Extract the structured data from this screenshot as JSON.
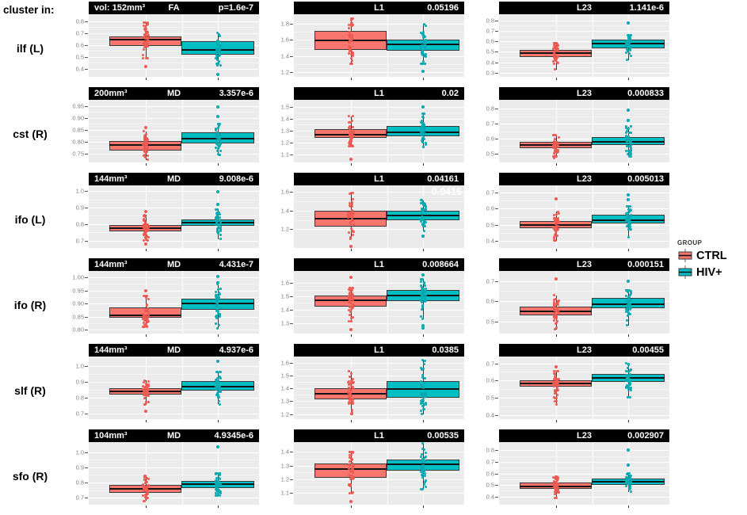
{
  "page": {
    "left_header": "cluster in:"
  },
  "legend": {
    "title": "GROUP",
    "entries": [
      {
        "label": "CTRL",
        "color": "#F8766D"
      },
      {
        "label": "HIV+",
        "color": "#00BFC4"
      }
    ]
  },
  "colors": {
    "ctrl": "#F8766D",
    "hiv": "#00BFC4",
    "ctrl_dot": "#ee5a51",
    "hiv_dot": "#00aab0",
    "panel_bg": "#ebebeb",
    "grid": "#ffffff",
    "header_bg": "#000000",
    "header_fg": "#ffffff",
    "tick": "#7f7f7f"
  },
  "chart_data": {
    "type": "boxplot-grid",
    "groups": [
      "CTRL",
      "HIV+"
    ],
    "rows": [
      {
        "tract": "ilf  (L)",
        "panels": [
          {
            "hl": "vol: 152mm³",
            "metric": "FA",
            "p": "p=1.6e-7",
            "ylim": [
              0.33,
              0.86
            ],
            "tick_labels": [
              "0.8",
              "0.7",
              "0.6",
              "0.5",
              "0.4"
            ],
            "tick_values": [
              0.8,
              0.7,
              0.6,
              0.5,
              0.4
            ],
            "ctrl": {
              "q1": 0.59,
              "median": 0.645,
              "q3": 0.675,
              "lo": 0.49,
              "hi": 0.79,
              "outliers": [
                0.415
              ]
            },
            "hiv": {
              "q1": 0.52,
              "median": 0.555,
              "q3": 0.63,
              "lo": 0.43,
              "hi": 0.7,
              "outliers": [
                0.35
              ]
            }
          },
          {
            "hl": "",
            "metric": "L1",
            "p": "0.05196",
            "ylim": [
              1.14,
              1.92
            ],
            "tick_labels": [
              "1.8",
              "1.6",
              "1.4",
              "1.2"
            ],
            "tick_values": [
              1.8,
              1.6,
              1.4,
              1.2
            ],
            "ctrl": {
              "q1": 1.48,
              "median": 1.59,
              "q3": 1.71,
              "lo": 1.3,
              "hi": 1.87,
              "outliers": []
            },
            "hiv": {
              "q1": 1.47,
              "median": 1.54,
              "q3": 1.6,
              "lo": 1.3,
              "hi": 1.8,
              "outliers": [
                1.21
              ]
            }
          },
          {
            "hl": "",
            "metric": "L23",
            "p": "1.141e-6",
            "ylim": [
              0.26,
              0.86
            ],
            "tick_labels": [
              "0.8",
              "0.7",
              "0.6",
              "0.5",
              "0.4",
              "0.3"
            ],
            "tick_values": [
              0.8,
              0.7,
              0.6,
              0.5,
              0.4,
              0.3
            ],
            "ctrl": {
              "q1": 0.45,
              "median": 0.487,
              "q3": 0.52,
              "lo": 0.33,
              "hi": 0.58,
              "outliers": []
            },
            "hiv": {
              "q1": 0.53,
              "median": 0.578,
              "q3": 0.62,
              "lo": 0.42,
              "hi": 0.66,
              "outliers": [
                0.78
              ]
            }
          }
        ]
      },
      {
        "tract": "cst  (R)",
        "panels": [
          {
            "hl": "200mm³",
            "metric": "MD",
            "p": "3.357e-6",
            "ylim": [
              0.715,
              0.975
            ],
            "tick_labels": [
              "0.95",
              "0.90",
              "0.85",
              "0.80",
              "0.75"
            ],
            "tick_values": [
              0.95,
              0.9,
              0.85,
              0.8,
              0.75
            ],
            "ctrl": {
              "q1": 0.765,
              "median": 0.787,
              "q3": 0.805,
              "lo": 0.725,
              "hi": 0.845,
              "outliers": [
                0.86
              ]
            },
            "hiv": {
              "q1": 0.795,
              "median": 0.815,
              "q3": 0.84,
              "lo": 0.745,
              "hi": 0.875,
              "outliers": [
                0.905,
                0.945
              ]
            }
          },
          {
            "hl": "",
            "metric": "L1",
            "p": "0.02",
            "ylim": [
              1.03,
              1.56
            ],
            "tick_labels": [
              "1.5",
              "1.4",
              "1.3",
              "1.2",
              "1.1"
            ],
            "tick_values": [
              1.5,
              1.4,
              1.3,
              1.2,
              1.1
            ],
            "ctrl": {
              "q1": 1.235,
              "median": 1.265,
              "q3": 1.31,
              "lo": 1.17,
              "hi": 1.42,
              "outliers": [
                1.06
              ]
            },
            "hiv": {
              "q1": 1.25,
              "median": 1.285,
              "q3": 1.34,
              "lo": 1.16,
              "hi": 1.44,
              "outliers": [
                1.5
              ]
            }
          },
          {
            "hl": "",
            "metric": "L23",
            "p": "0.000833",
            "ylim": [
              0.44,
              0.86
            ],
            "tick_labels": [
              "0.8",
              "0.7",
              "0.6",
              "0.5"
            ],
            "tick_values": [
              0.8,
              0.7,
              0.6,
              0.5
            ],
            "ctrl": {
              "q1": 0.535,
              "median": 0.556,
              "q3": 0.578,
              "lo": 0.47,
              "hi": 0.625,
              "outliers": []
            },
            "hiv": {
              "q1": 0.555,
              "median": 0.578,
              "q3": 0.612,
              "lo": 0.48,
              "hi": 0.68,
              "outliers": [
                0.72,
                0.79
              ]
            }
          }
        ]
      },
      {
        "tract": "ifo (L)",
        "panels": [
          {
            "hl": "144mm³",
            "metric": "MD",
            "p": "9.008e-6",
            "ylim": [
              0.655,
              1.035
            ],
            "tick_labels": [
              "1.0",
              "0.9",
              "0.8",
              "0.7"
            ],
            "tick_values": [
              1.0,
              0.9,
              0.8,
              0.7
            ],
            "ctrl": {
              "q1": 0.755,
              "median": 0.776,
              "q3": 0.795,
              "lo": 0.7,
              "hi": 0.855,
              "outliers": [
                0.875,
                0.68
              ]
            },
            "hiv": {
              "q1": 0.79,
              "median": 0.81,
              "q3": 0.83,
              "lo": 0.71,
              "hi": 0.89,
              "outliers": [
                0.92,
                0.995
              ]
            }
          },
          {
            "hl": "",
            "metric": "L1",
            "p": "0.04161",
            "overlay": "0.0416",
            "ylim": [
              1.0,
              1.67
            ],
            "tick_labels": [
              "1.6",
              "1.4",
              "1.2"
            ],
            "tick_values": [
              1.6,
              1.4,
              1.2
            ],
            "ctrl": {
              "q1": 1.23,
              "median": 1.315,
              "q3": 1.4,
              "lo": 1.1,
              "hi": 1.59,
              "outliers": [
                1.02
              ]
            },
            "hiv": {
              "q1": 1.3,
              "median": 1.35,
              "q3": 1.4,
              "lo": 1.18,
              "hi": 1.51,
              "outliers": [
                1.13
              ]
            }
          },
          {
            "hl": "",
            "metric": "L23",
            "p": "0.005013",
            "ylim": [
              0.355,
              0.745
            ],
            "tick_labels": [
              "0.7",
              "0.6",
              "0.5",
              "0.4"
            ],
            "tick_values": [
              0.7,
              0.6,
              0.5,
              0.4
            ],
            "ctrl": {
              "q1": 0.48,
              "median": 0.497,
              "q3": 0.525,
              "lo": 0.4,
              "hi": 0.58,
              "outliers": [
                0.66
              ]
            },
            "hiv": {
              "q1": 0.51,
              "median": 0.53,
              "q3": 0.56,
              "lo": 0.42,
              "hi": 0.615,
              "outliers": [
                0.655,
                0.685
              ]
            }
          }
        ]
      },
      {
        "tract": "ifo (R)",
        "panels": [
          {
            "hl": "144mm³",
            "metric": "MD",
            "p": "4.431e-7",
            "ylim": [
              0.785,
              1.025
            ],
            "tick_labels": [
              "1.00",
              "0.95",
              "0.90",
              "0.85",
              "0.80"
            ],
            "tick_values": [
              1.0,
              0.95,
              0.9,
              0.85,
              0.8
            ],
            "ctrl": {
              "q1": 0.845,
              "median": 0.856,
              "q3": 0.885,
              "lo": 0.81,
              "hi": 0.93,
              "outliers": [
                0.95
              ]
            },
            "hiv": {
              "q1": 0.875,
              "median": 0.901,
              "q3": 0.92,
              "lo": 0.805,
              "hi": 0.98,
              "outliers": [
                1.005
              ]
            }
          },
          {
            "hl": "",
            "metric": "L1",
            "p": "0.008664",
            "ylim": [
              1.22,
              1.69
            ],
            "tick_labels": [
              "1.6",
              "1.5",
              "1.4",
              "1.3"
            ],
            "tick_values": [
              1.6,
              1.5,
              1.4,
              1.3
            ],
            "ctrl": {
              "q1": 1.425,
              "median": 1.468,
              "q3": 1.505,
              "lo": 1.31,
              "hi": 1.565,
              "outliers": [
                1.25,
                1.64
              ]
            },
            "hiv": {
              "q1": 1.465,
              "median": 1.505,
              "q3": 1.545,
              "lo": 1.33,
              "hi": 1.63,
              "outliers": [
                1.26,
                1.28,
                1.66
              ]
            }
          },
          {
            "hl": "",
            "metric": "L23",
            "p": "0.000151",
            "ylim": [
              0.44,
              0.75
            ],
            "tick_labels": [
              "0.7",
              "0.6",
              "0.5"
            ],
            "tick_values": [
              0.7,
              0.6,
              0.5
            ],
            "ctrl": {
              "q1": 0.53,
              "median": 0.55,
              "q3": 0.575,
              "lo": 0.46,
              "hi": 0.63,
              "outliers": [
                0.71
              ]
            },
            "hiv": {
              "q1": 0.565,
              "median": 0.586,
              "q3": 0.615,
              "lo": 0.48,
              "hi": 0.655,
              "outliers": [
                0.7
              ]
            }
          }
        ]
      },
      {
        "tract": "slf (R)",
        "panels": [
          {
            "hl": "144mm³",
            "metric": "MD",
            "p": "4.937e-6",
            "ylim": [
              0.665,
              1.06
            ],
            "tick_labels": [
              "1.0",
              "0.9",
              "0.8",
              "0.7"
            ],
            "tick_values": [
              1.0,
              0.9,
              0.8,
              0.7
            ],
            "ctrl": {
              "q1": 0.82,
              "median": 0.84,
              "q3": 0.86,
              "lo": 0.76,
              "hi": 0.91,
              "outliers": [
                0.715
              ]
            },
            "hiv": {
              "q1": 0.845,
              "median": 0.872,
              "q3": 0.905,
              "lo": 0.76,
              "hi": 0.965,
              "outliers": [
                1.03
              ]
            }
          },
          {
            "hl": "",
            "metric": "L1",
            "p": "0.0385",
            "ylim": [
              1.16,
              1.65
            ],
            "tick_labels": [
              "1.6",
              "1.5",
              "1.4",
              "1.3",
              "1.2"
            ],
            "tick_values": [
              1.6,
              1.5,
              1.4,
              1.3,
              1.2
            ],
            "ctrl": {
              "q1": 1.315,
              "median": 1.36,
              "q3": 1.405,
              "lo": 1.2,
              "hi": 1.535,
              "outliers": []
            },
            "hiv": {
              "q1": 1.33,
              "median": 1.395,
              "q3": 1.46,
              "lo": 1.2,
              "hi": 1.62,
              "outliers": []
            }
          },
          {
            "hl": "",
            "metric": "L23",
            "p": "0.00455",
            "ylim": [
              0.375,
              0.74
            ],
            "tick_labels": [
              "0.7",
              "0.6",
              "0.5",
              "0.4"
            ],
            "tick_values": [
              0.7,
              0.6,
              0.5,
              0.4
            ],
            "ctrl": {
              "q1": 0.565,
              "median": 0.583,
              "q3": 0.6,
              "lo": 0.46,
              "hi": 0.655,
              "outliers": [
                0.68
              ]
            },
            "hiv": {
              "q1": 0.59,
              "median": 0.614,
              "q3": 0.64,
              "lo": 0.5,
              "hi": 0.7,
              "outliers": []
            }
          }
        ]
      },
      {
        "tract": "sfo (R)",
        "panels": [
          {
            "hl": "104mm³",
            "metric": "MD",
            "p": "4.9345e-6",
            "ylim": [
              0.655,
              1.065
            ],
            "tick_labels": [
              "1.0",
              "0.9",
              "0.8",
              "0.7"
            ],
            "tick_values": [
              1.0,
              0.9,
              0.8,
              0.7
            ],
            "ctrl": {
              "q1": 0.735,
              "median": 0.76,
              "q3": 0.785,
              "lo": 0.68,
              "hi": 0.845,
              "outliers": []
            },
            "hiv": {
              "q1": 0.765,
              "median": 0.791,
              "q3": 0.81,
              "lo": 0.715,
              "hi": 0.86,
              "outliers": [
                1.035
              ]
            }
          },
          {
            "hl": "",
            "metric": "L1",
            "p": "0.00535",
            "ylim": [
              1.015,
              1.47
            ],
            "tick_labels": [
              "1.4",
              "1.3",
              "1.2",
              "1.1"
            ],
            "tick_values": [
              1.4,
              1.3,
              1.2,
              1.1
            ],
            "ctrl": {
              "q1": 1.21,
              "median": 1.275,
              "q3": 1.315,
              "lo": 1.1,
              "hi": 1.4,
              "outliers": [
                1.04
              ]
            },
            "hiv": {
              "q1": 1.26,
              "median": 1.307,
              "q3": 1.345,
              "lo": 1.13,
              "hi": 1.46,
              "outliers": []
            }
          },
          {
            "hl": "",
            "metric": "L23",
            "p": "0.002907",
            "ylim": [
              0.33,
              0.87
            ],
            "tick_labels": [
              "0.8",
              "0.7",
              "0.6",
              "0.5",
              "0.4"
            ],
            "tick_values": [
              0.8,
              0.7,
              0.6,
              0.5,
              0.4
            ],
            "ctrl": {
              "q1": 0.465,
              "median": 0.49,
              "q3": 0.52,
              "lo": 0.39,
              "hi": 0.575,
              "outliers": []
            },
            "hiv": {
              "q1": 0.5,
              "median": 0.53,
              "q3": 0.555,
              "lo": 0.44,
              "hi": 0.6,
              "outliers": [
                0.67,
                0.8
              ]
            }
          }
        ]
      }
    ]
  }
}
